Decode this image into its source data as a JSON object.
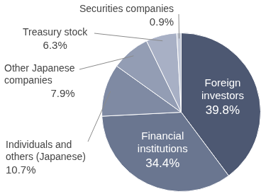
{
  "chart_data": {
    "type": "pie",
    "categories": [
      "Foreign investors",
      "Financial institutions",
      "Individuals and others (Japanese)",
      "Other Japanese companies",
      "Treasury stock",
      "Securities companies"
    ],
    "values": [
      39.8,
      34.4,
      10.7,
      7.9,
      6.3,
      0.9
    ],
    "value_labels": [
      "39.8%",
      "34.4%",
      "10.7%",
      "7.9%",
      "6.3%",
      "0.9%"
    ],
    "colors": [
      "#4d5872",
      "#6a7690",
      "#7f8aa3",
      "#939db4",
      "#a8b0c5",
      "#c3c9d8"
    ],
    "data_labels": true
  }
}
